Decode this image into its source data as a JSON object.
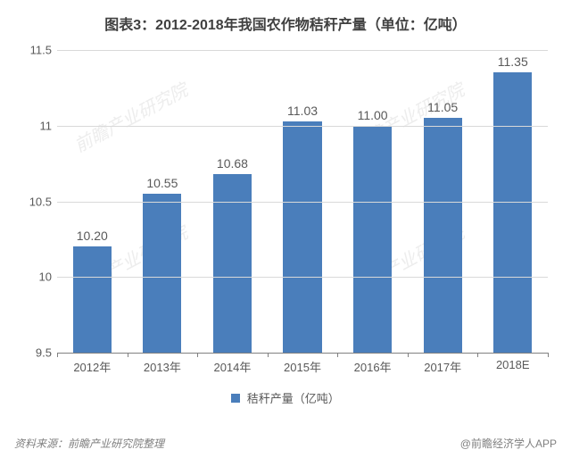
{
  "chart": {
    "type": "bar",
    "title": "图表3：2012-2018年我国农作物秸秆产量（单位：亿吨）",
    "title_fontsize": 16,
    "title_color": "#404040",
    "categories": [
      "2012年",
      "2013年",
      "2014年",
      "2015年",
      "2016年",
      "2017年",
      "2018E"
    ],
    "values": [
      10.2,
      10.55,
      10.68,
      11.03,
      11.0,
      11.05,
      11.35
    ],
    "value_labels": [
      "10.20",
      "10.55",
      "10.68",
      "11.03",
      "11.00",
      "11.05",
      "11.35"
    ],
    "bar_color": "#4a7ebb",
    "bar_width_ratio": 0.55,
    "ylim": [
      9.5,
      11.5
    ],
    "yticks": [
      9.5,
      10,
      10.5,
      11,
      11.5
    ],
    "ytick_labels": [
      "9.5",
      "10",
      "10.5",
      "11",
      "11.5"
    ],
    "grid_color": "#d9d9d9",
    "axis_color": "#808080",
    "axis_fontsize": 13,
    "value_label_fontsize": 14,
    "background_color": "#ffffff",
    "legend": {
      "label": "秸秆产量（亿吨）",
      "swatch_color": "#4a7ebb",
      "swatch_size": 10,
      "fontsize": 13
    }
  },
  "footer": {
    "source_label": "资料来源：前瞻产业研究院整理",
    "attribution": "@前瞻经济学人APP",
    "fontsize": 12,
    "color": "#808080"
  },
  "watermark": {
    "text": "前瞻产业研究院",
    "color": "#ededed",
    "fontsize": 20
  }
}
